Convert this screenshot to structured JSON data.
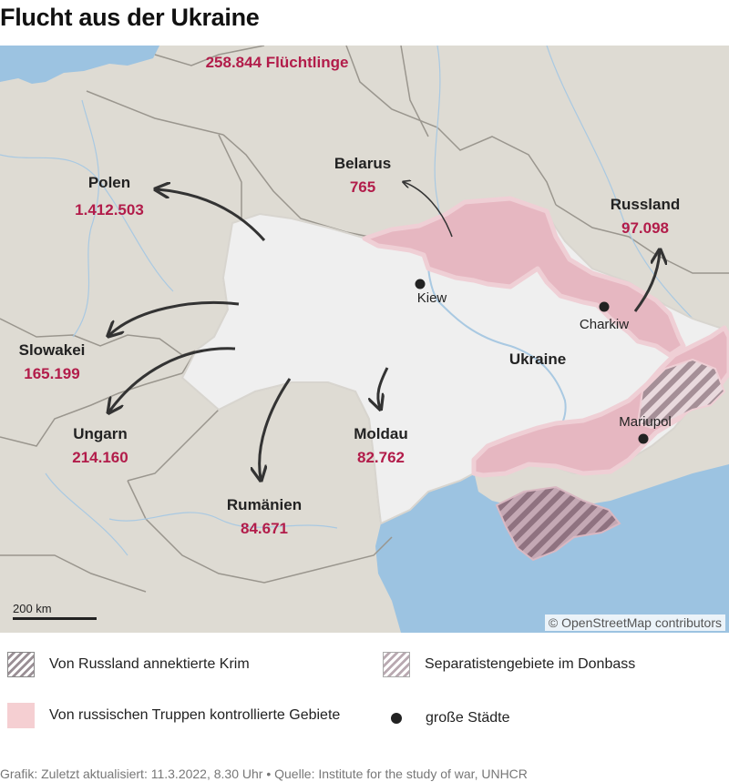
{
  "title": "Flucht aus der Ukraine",
  "map": {
    "regions": [
      {
        "name": "Polen",
        "count": "1.412.503"
      },
      {
        "name": "Belarus",
        "count": "765"
      },
      {
        "name": "Russland",
        "count": "97.098"
      },
      {
        "name": "Slowakei",
        "count": "165.199"
      },
      {
        "name": "Ungarn",
        "count": "214.160"
      },
      {
        "name": "Moldau",
        "count": "82.762"
      },
      {
        "name": "Rumänien",
        "count": "84.671"
      },
      {
        "name": "Ukraine"
      }
    ],
    "top_count": "258.844 Flüchtlinge",
    "cities": [
      "Kiew",
      "Charkiw",
      "Mariupol"
    ],
    "scale_label": "200 km",
    "copyright": "© OpenStreetMap contributors",
    "colors": {
      "land": "#dedbd3",
      "ukraine": "#efefef",
      "water": "#9cc3e1",
      "occupied": "#e6b7c1",
      "count_text": "#b21c4a",
      "arrow": "#333333"
    }
  },
  "legend": {
    "crimea": "Von Russland annektierte Krim",
    "donbass": "Separatistengebiete im Donbass",
    "occupied": "Von russischen Truppen kontrollierte Gebiete",
    "cities": "große Städte"
  },
  "footer": "Grafik: Zuletzt aktualisiert: 11.3.2022, 8.30 Uhr • Quelle: Institute for the study of war, UNHCR"
}
